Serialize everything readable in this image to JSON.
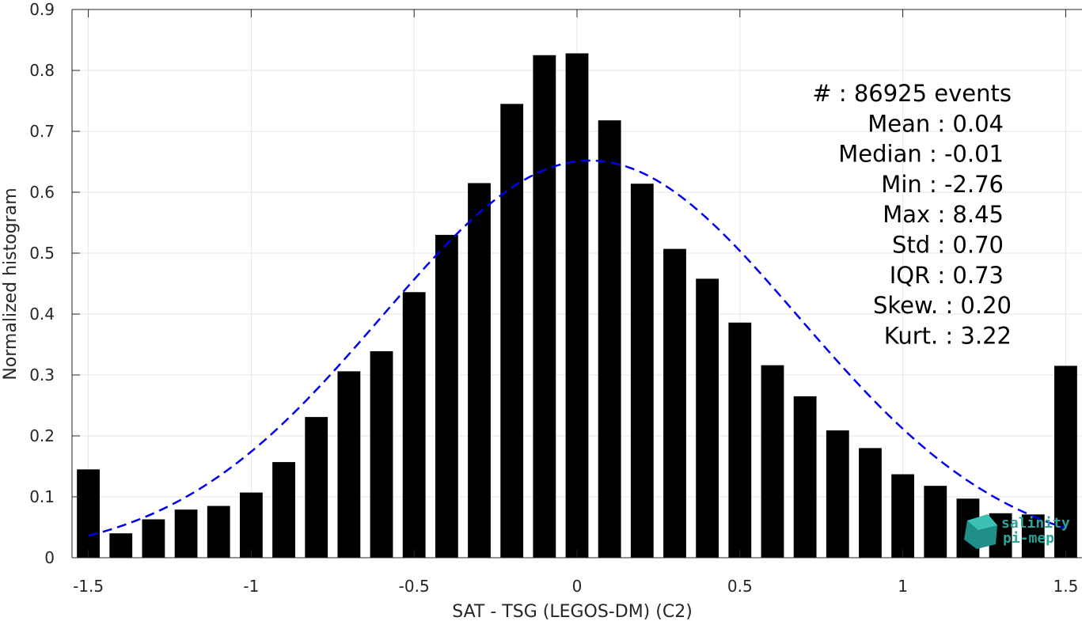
{
  "chart_data": {
    "type": "bar",
    "xlabel": "SAT - TSG (LEGOS-DM) (C2)",
    "ylabel": "Normalized histogram",
    "xlim": [
      -1.55,
      1.55
    ],
    "ylim": [
      0,
      0.9
    ],
    "x_ticks": [
      -1.5,
      -1,
      -0.5,
      0,
      0.5,
      1,
      1.5
    ],
    "x_tick_labels": [
      "-1.5",
      "-1",
      "-0.5",
      "0",
      "0.5",
      "1",
      "1.5"
    ],
    "y_ticks": [
      0,
      0.1,
      0.2,
      0.3,
      0.4,
      0.5,
      0.6,
      0.7,
      0.8,
      0.9
    ],
    "y_tick_labels": [
      "0",
      "0.1",
      "0.2",
      "0.3",
      "0.4",
      "0.5",
      "0.6",
      "0.7",
      "0.8",
      "0.9"
    ],
    "grid": true,
    "bar_width": 0.07,
    "bar_color": "#000000",
    "fit_color": "#0000ee",
    "bins": [
      -1.5,
      -1.4,
      -1.3,
      -1.2,
      -1.1,
      -1.0,
      -0.9,
      -0.8,
      -0.7,
      -0.6,
      -0.5,
      -0.4,
      -0.3,
      -0.2,
      -0.1,
      0.0,
      0.1,
      0.2,
      0.3,
      0.4,
      0.5,
      0.6,
      0.7,
      0.8,
      0.9,
      1.0,
      1.1,
      1.2,
      1.3,
      1.4,
      1.5
    ],
    "values": [
      0.145,
      0.04,
      0.063,
      0.079,
      0.085,
      0.107,
      0.157,
      0.231,
      0.306,
      0.339,
      0.436,
      0.53,
      0.615,
      0.745,
      0.825,
      0.828,
      0.718,
      0.614,
      0.507,
      0.458,
      0.386,
      0.316,
      0.265,
      0.209,
      0.18,
      0.137,
      0.118,
      0.097,
      0.073,
      0.071,
      0.315
    ],
    "fit": {
      "type": "gaussian",
      "mean": 0.04,
      "std": 0.64,
      "peak": 0.652,
      "x_range": [
        -1.5,
        1.5
      ]
    },
    "stats": [
      {
        "label": "#  ",
        "value": ": 86925 events"
      },
      {
        "label": "Mean",
        "value": ": 0.04"
      },
      {
        "label": "Median",
        "value": ": -0.01"
      },
      {
        "label": "Min",
        "value": ": -2.76"
      },
      {
        "label": "Max",
        "value": ": 8.45"
      },
      {
        "label": "Std",
        "value": ": 0.70"
      },
      {
        "label": "IQR",
        "value": ": 0.73"
      },
      {
        "label": "Skew.",
        "value": ": 0.20"
      },
      {
        "label": "Kurt.",
        "value": ": 3.22"
      }
    ]
  },
  "logo": {
    "line1": "salinity",
    "line2": "pi-mep",
    "color": "#2aa39a"
  }
}
